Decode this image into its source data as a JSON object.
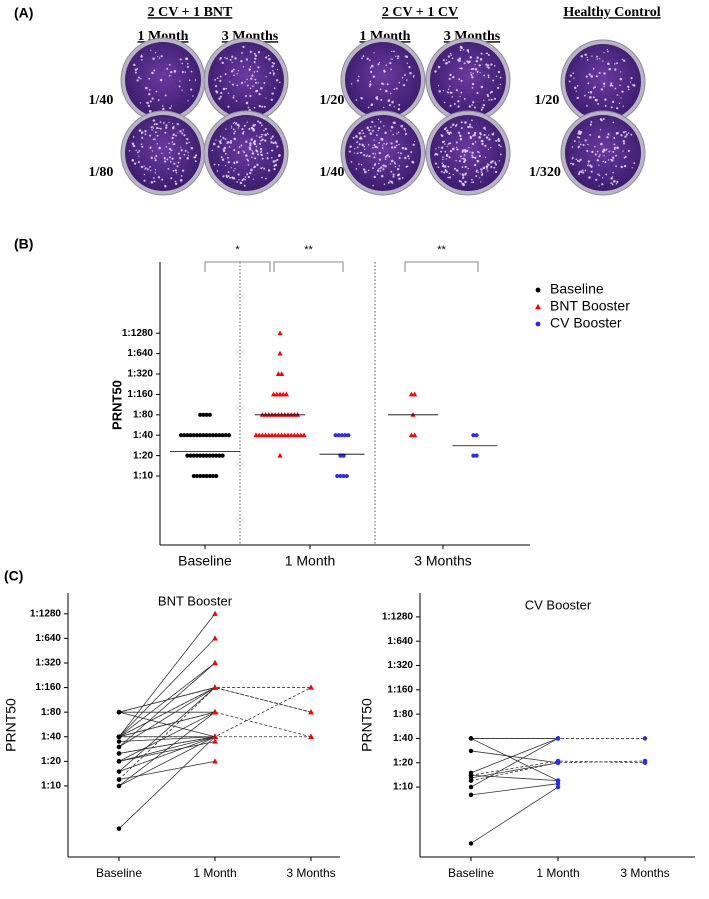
{
  "panel_a": {
    "label": "(A)",
    "groups": [
      {
        "title": "2 CV + 1 BNT",
        "columns": [
          "1 Month",
          "3 Months"
        ],
        "rows": [
          "1/40",
          "1/80"
        ]
      },
      {
        "title": "2 CV + 1 CV",
        "columns": [
          "1 Month",
          "3 Months"
        ],
        "rows": [
          "1/20",
          "1/40"
        ]
      },
      {
        "title": "Healthy Control",
        "rows": [
          "1/20",
          "1/320"
        ]
      }
    ]
  },
  "chart_data": [
    {
      "type": "strip",
      "panel": "(B)",
      "ylabel": "PRNT50",
      "log": true,
      "legend": "upper right",
      "categories": [
        "Baseline",
        "1 Month",
        "3 Months"
      ],
      "ylim": [
        0.96,
        14380
      ],
      "yticks": [
        {
          "value": 10,
          "label": "1:10"
        },
        {
          "value": 20,
          "label": "1:20"
        },
        {
          "value": 40,
          "label": "1:40"
        },
        {
          "value": 80,
          "label": "1:80"
        },
        {
          "value": 160,
          "label": "1:160"
        },
        {
          "value": 320,
          "label": "1:320"
        },
        {
          "value": 640,
          "label": "1:640"
        },
        {
          "value": 1280,
          "label": "1:1280"
        }
      ],
      "annotations": [
        "*",
        "**",
        "**"
      ],
      "series": [
        {
          "name": "Baseline",
          "color": "#000000",
          "marker": "circle",
          "values": [
            [
              80,
              80,
              80,
              80,
              40,
              40,
              40,
              40,
              40,
              40,
              40,
              40,
              40,
              40,
              40,
              40,
              40,
              40,
              40,
              40,
              20,
              20,
              20,
              20,
              20,
              20,
              20,
              20,
              20,
              20,
              20,
              20,
              10,
              10,
              10,
              10,
              10,
              10,
              10,
              10
            ],
            [],
            []
          ],
          "medians": [
            23,
            null,
            null
          ]
        },
        {
          "name": "BNT Booster",
          "color": "#ff0000",
          "marker": "triangle",
          "values": [
            [],
            [
              1280,
              640,
              320,
              320,
              160,
              160,
              160,
              160,
              160,
              80,
              80,
              80,
              80,
              80,
              80,
              80,
              80,
              80,
              80,
              80,
              80,
              40,
              40,
              40,
              40,
              40,
              40,
              40,
              40,
              40,
              40,
              40,
              40,
              40,
              40,
              40,
              40,
              20
            ],
            [
              160,
              160,
              80,
              40,
              40
            ]
          ],
          "medians": [
            null,
            80,
            80
          ]
        },
        {
          "name": "CV Booster",
          "color": "#2a2aff",
          "marker": "circle",
          "values": [
            [],
            [
              40,
              40,
              40,
              40,
              40,
              20,
              20,
              10,
              10,
              10,
              10
            ],
            [
              40,
              40,
              20,
              20
            ]
          ],
          "medians": [
            null,
            21,
            28
          ]
        }
      ]
    },
    {
      "type": "line",
      "panel": "(C)",
      "title": "BNT Booster",
      "ylabel": "PRNT50",
      "log": true,
      "categories": [
        "Baseline",
        "1 Month",
        "3 Months"
      ],
      "ylim": [
        1.35,
        2300
      ],
      "yticks": [
        {
          "value": 10,
          "label": "1:10"
        },
        {
          "value": 20,
          "label": "1:20"
        },
        {
          "value": 40,
          "label": "1:40"
        },
        {
          "value": 80,
          "label": "1:80"
        },
        {
          "value": 160,
          "label": "1:160"
        },
        {
          "value": 320,
          "label": "1:320"
        },
        {
          "value": 640,
          "label": "1:640"
        },
        {
          "value": 1280,
          "label": "1:1280"
        }
      ],
      "line_color": "#333333",
      "marker_colors": [
        "#000000",
        "#ff0000",
        "#ff0000"
      ],
      "markers": [
        "circle",
        "triangle",
        "triangle"
      ],
      "series": [
        {
          "values": [
            80,
            160,
            null
          ]
        },
        {
          "values": [
            80,
            40,
            null
          ]
        },
        {
          "values": [
            80,
            80,
            null
          ]
        },
        {
          "values": [
            40,
            1280,
            null
          ]
        },
        {
          "values": [
            40,
            640,
            null
          ]
        },
        {
          "values": [
            40,
            320,
            null
          ]
        },
        {
          "values": [
            40,
            160,
            null
          ]
        },
        {
          "values": [
            40,
            80,
            null
          ]
        },
        {
          "values": [
            40,
            40,
            null
          ]
        },
        {
          "values": [
            35,
            40,
            null
          ]
        },
        {
          "values": [
            30,
            320,
            null
          ]
        },
        {
          "values": [
            30,
            160,
            null
          ]
        },
        {
          "values": [
            25,
            40,
            null
          ]
        },
        {
          "values": [
            20,
            40,
            null
          ]
        },
        {
          "values": [
            20,
            80,
            null
          ]
        },
        {
          "values": [
            20,
            35,
            null
          ]
        },
        {
          "values": [
            15,
            160,
            null
          ]
        },
        {
          "values": [
            15,
            40,
            null
          ]
        },
        {
          "values": [
            12,
            20,
            null
          ]
        },
        {
          "values": [
            10,
            40,
            null
          ]
        },
        {
          "values": [
            10,
            80,
            null
          ]
        },
        {
          "values": [
            3,
            40,
            null
          ]
        },
        {
          "values": [
            80,
            160,
            80
          ],
          "dash": true
        },
        {
          "values": [
            40,
            40,
            40
          ],
          "dash": true
        },
        {
          "values": [
            25,
            40,
            160
          ],
          "dash": true
        },
        {
          "values": [
            40,
            80,
            40
          ],
          "dash": true
        },
        {
          "values": [
            12,
            160,
            160
          ],
          "dash": true
        },
        {
          "values": [
            40,
            160,
            80
          ],
          "dash": true
        }
      ]
    },
    {
      "type": "line",
      "title": "CV Booster",
      "ylabel": "PRNT50",
      "log": true,
      "categories": [
        "Baseline",
        "1 Month",
        "3 Months"
      ],
      "ylim": [
        1.36,
        2530
      ],
      "yticks": [
        {
          "value": 10,
          "label": "1:10"
        },
        {
          "value": 20,
          "label": "1:20"
        },
        {
          "value": 40,
          "label": "1:40"
        },
        {
          "value": 80,
          "label": "1:80"
        },
        {
          "value": 160,
          "label": "1:160"
        },
        {
          "value": 320,
          "label": "1:320"
        },
        {
          "value": 640,
          "label": "1:640"
        },
        {
          "value": 1280,
          "label": "1:1280"
        }
      ],
      "line_color": "#333333",
      "marker_colors": [
        "#000000",
        "#2a2aff",
        "#2a2aff"
      ],
      "markers": [
        "circle",
        "circle",
        "circle"
      ],
      "series": [
        {
          "values": [
            40,
            40,
            null
          ]
        },
        {
          "values": [
            40,
            12,
            null
          ]
        },
        {
          "values": [
            28,
            20,
            null
          ]
        },
        {
          "values": [
            15,
            40,
            null
          ]
        },
        {
          "values": [
            14,
            12,
            null
          ]
        },
        {
          "values": [
            13,
            20,
            null
          ]
        },
        {
          "values": [
            10,
            40,
            null
          ]
        },
        {
          "values": [
            8,
            11,
            null
          ]
        },
        {
          "values": [
            2,
            10,
            null
          ]
        },
        {
          "values": [
            40,
            40,
            40
          ],
          "dash": true
        },
        {
          "values": [
            14,
            21,
            20
          ],
          "dash": true
        },
        {
          "values": [
            12,
            20,
            21
          ],
          "dash": true
        }
      ]
    }
  ]
}
